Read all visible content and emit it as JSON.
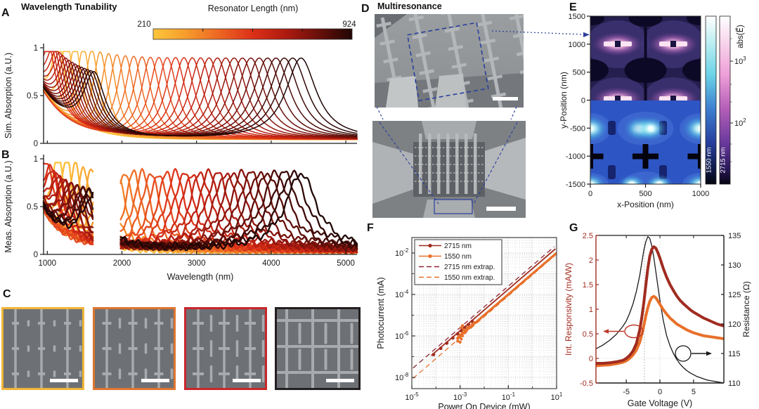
{
  "labels": {
    "panel_a": "A",
    "panel_b": "B",
    "panel_c": "C",
    "panel_d": "D",
    "panel_e": "E",
    "panel_f": "F",
    "panel_g": "G",
    "tunability_title": "Wavelength Tunability",
    "multiresonance_title": "Multiresonance"
  },
  "colors": {
    "accent_blue": "#2B3F9E",
    "dark_red": "#A02C20",
    "orange": "#E8702A",
    "maroon_dash": "#8E2433",
    "axis": "#1a1a1a",
    "sem_bg": "#6d7175",
    "sem_bar": "#a8abad",
    "frame_gold": "#EFB537",
    "frame_orange": "#DE752F",
    "frame_red": "#C9272B",
    "frame_black": "#231F20"
  },
  "colormap_stops": [
    [
      0,
      "#FFC53D"
    ],
    [
      0.15,
      "#F6A02C"
    ],
    [
      0.32,
      "#EE6A24"
    ],
    [
      0.5,
      "#DC3018"
    ],
    [
      0.66,
      "#B01B10"
    ],
    [
      0.82,
      "#6E100A"
    ],
    [
      1,
      "#200605"
    ]
  ],
  "chart_data": [
    {
      "id": "A",
      "type": "line",
      "ylabel": "Sim. Absorption (a.U.)",
      "yticks": [
        1,
        0.5,
        0
      ],
      "xlim": [
        950,
        5150
      ],
      "ylim": [
        0,
        1
      ],
      "n_curves": 30,
      "peak_center_first_nm": 1150,
      "peak_center_last_nm": 4400,
      "peak_amplitude": 0.87,
      "colorbar": {
        "title": "Resonator Length (nm)",
        "min": "210",
        "max": "924"
      },
      "note": "30 simulated resonance spectra; peak sweeps ~1150-4400 nm; color encodes resonator length 210-924 nm; short-wavelength higher-order modes cluster at 1000-1650 nm for long resonators"
    },
    {
      "id": "B",
      "type": "line",
      "ylabel": "Meas. Absorption (a.U.)",
      "xlabel": "Wavelength (nm)",
      "yticks": [
        1,
        0.5,
        0
      ],
      "xticks": [
        1000,
        2000,
        3000,
        4000,
        5000
      ],
      "xlim": [
        950,
        5150
      ],
      "ylim": [
        0,
        1
      ],
      "gap_nm": [
        1620,
        1980
      ],
      "n_curves": 30,
      "note": "measured spectra with no data in the 1620-1980 nm band"
    },
    {
      "id": "E",
      "type": "heatmap",
      "xlabel": "x-Position (nm)",
      "ylabel": "y-Position (nm)",
      "xticks": [
        0,
        500,
        1000
      ],
      "yticks": [
        1500,
        1000,
        500,
        0,
        -500,
        -1000,
        -1500
      ],
      "colorbar_label": "abs(E⃗)",
      "colorbar_tick_base": "10",
      "colorbar_tick_exps": [
        3,
        2
      ],
      "maps": [
        {
          "wavelength": "2715 nm",
          "region_y": [
            0,
            1500
          ],
          "palette": "magenta-purple",
          "hotspot_rows_nm": [
            1000,
            0
          ],
          "null_row_nm": 500
        },
        {
          "wavelength": "1550 nm",
          "region_y": [
            -1500,
            0
          ],
          "palette": "cyan-blue",
          "hotspot_rows_nm": [
            -500,
            -1500
          ],
          "null_row_nm": -1000
        }
      ]
    },
    {
      "id": "F",
      "type": "scatter",
      "xlabel": "Power On Device (mW)",
      "ylabel": "Photocurrent (mA)",
      "tick_base": "10",
      "xtick_exps": [
        -5,
        -3,
        -1,
        1
      ],
      "ytick_exps": [
        -2,
        -4,
        -6,
        -8
      ],
      "legend": [
        {
          "label": "2715 nm",
          "style": "solid-marker",
          "color": "#A02C20"
        },
        {
          "label": "1550 nm",
          "style": "solid-marker",
          "color": "#E8702A"
        },
        {
          "label": "2715 nm extrap.",
          "style": "dashed",
          "color": "#8E2433"
        },
        {
          "label": "1550 nm extrap.",
          "style": "dashed",
          "color": "#E8702A"
        }
      ],
      "series": {
        "p2715_log": [
          [
            -4.1,
            -6.9
          ],
          [
            -3.8,
            -6.6
          ],
          [
            -3.55,
            -6.35
          ],
          [
            -3.3,
            -6.1
          ],
          [
            -3.1,
            -5.9
          ],
          [
            -2.95,
            -5.75
          ],
          [
            -2.8,
            -5.6
          ],
          [
            -2.65,
            -5.45
          ],
          [
            -2.5,
            -5.3
          ]
        ],
        "p1550_log": [
          [
            -3.1,
            -6.25
          ],
          [
            -3.05,
            -6.05
          ],
          [
            -3.0,
            -6.3
          ],
          [
            -3.0,
            -5.95
          ],
          [
            -2.95,
            -6.15
          ],
          [
            -2.95,
            -5.6
          ],
          [
            -2.9,
            -5.85
          ],
          [
            -2.9,
            -6.0
          ],
          [
            -2.9,
            -5.5
          ],
          [
            -2.85,
            -5.7
          ],
          [
            -2.8,
            -5.85
          ],
          [
            -2.75,
            -5.75
          ],
          [
            -2.7,
            -5.6
          ],
          [
            -2.6,
            -5.55
          ],
          [
            -2.5,
            -5.45
          ],
          [
            -2.4,
            -5.35
          ]
        ],
        "line2715_log": [
          [
            -4.2,
            -6.95
          ],
          [
            0.95,
            -1.8
          ]
        ],
        "line1550_log": [
          [
            -3.15,
            -6.15
          ],
          [
            1,
            -2.0
          ]
        ],
        "extrap2715_log": [
          [
            -4.95,
            -7.55
          ],
          [
            0.9,
            -1.7
          ]
        ],
        "extrap1550_log": [
          [
            -4.95,
            -8.05
          ],
          [
            0.95,
            -2.1
          ]
        ]
      }
    },
    {
      "id": "G",
      "type": "line",
      "xlabel": "Gate Voltage  (V)",
      "ylabel_left": "Int. Responsivity (mA/W)",
      "ylabel_right": "Resistance (Ω)",
      "xticks": [
        -5,
        0,
        5
      ],
      "yticks_left": [
        2.5,
        2,
        1.5,
        1,
        0.5,
        0,
        -0.5
      ],
      "yticks_right": [
        135,
        130,
        125,
        120,
        115,
        110
      ],
      "xlim": [
        -9.5,
        9.5
      ],
      "ylim_left": [
        -0.5,
        2.5
      ],
      "ylim_right": [
        110,
        135
      ],
      "gate": [
        -9.5,
        -8.5,
        -7.5,
        -6.5,
        -5.5,
        -5,
        -4.5,
        -4,
        -3.5,
        -3,
        -2.7,
        -2.4,
        -2.1,
        -1.8,
        -1.5,
        -1.2,
        -0.9,
        -0.6,
        -0.3,
        0,
        0.5,
        1,
        1.5,
        2,
        2.5,
        3,
        3.5,
        4,
        4.5,
        5,
        5.5,
        6,
        6.5,
        7,
        7.5,
        8,
        8.5,
        9,
        9.5
      ],
      "resistance": [
        115.8,
        116.4,
        117.2,
        118.2,
        119.6,
        120.5,
        121.8,
        123.4,
        125.5,
        128.2,
        130.3,
        132.4,
        133.9,
        134.8,
        134.5,
        133.2,
        131.2,
        128.8,
        126.4,
        124.0,
        120.6,
        118.0,
        116.3,
        115.0,
        114.0,
        113.2,
        112.6,
        112.1,
        111.7,
        111.4,
        111.1,
        110.9,
        110.7,
        110.5,
        110.4,
        110.3,
        110.2,
        110.1,
        110.0
      ],
      "responsivity_2715": [
        -0.1,
        -0.1,
        -0.09,
        -0.07,
        -0.04,
        0.0,
        0.06,
        0.15,
        0.3,
        0.58,
        0.82,
        1.12,
        1.48,
        1.83,
        2.08,
        2.22,
        2.27,
        2.24,
        2.15,
        2.04,
        1.83,
        1.65,
        1.5,
        1.38,
        1.27,
        1.18,
        1.11,
        1.05,
        0.99,
        0.94,
        0.9,
        0.86,
        0.82,
        0.79,
        0.76,
        0.73,
        0.7,
        0.68,
        0.66
      ],
      "responsivity_1550": [
        -0.15,
        -0.14,
        -0.13,
        -0.11,
        -0.08,
        -0.05,
        0.0,
        0.07,
        0.17,
        0.33,
        0.48,
        0.66,
        0.86,
        1.03,
        1.16,
        1.24,
        1.26,
        1.23,
        1.17,
        1.1,
        0.99,
        0.9,
        0.82,
        0.76,
        0.7,
        0.66,
        0.62,
        0.58,
        0.55,
        0.52,
        0.5,
        0.48,
        0.46,
        0.45,
        0.44,
        0.43,
        0.42,
        0.41,
        0.4
      ],
      "series_colors": {
        "resistance": "#1a1a1a",
        "r2715": "#A02C20",
        "r1550": "#E8702A"
      }
    }
  ],
  "sem": {
    "c_frame_colors": [
      "#EFB537",
      "#DE752F",
      "#C9272B",
      "#231F20"
    ],
    "scalebar_color": "#ffffff"
  }
}
